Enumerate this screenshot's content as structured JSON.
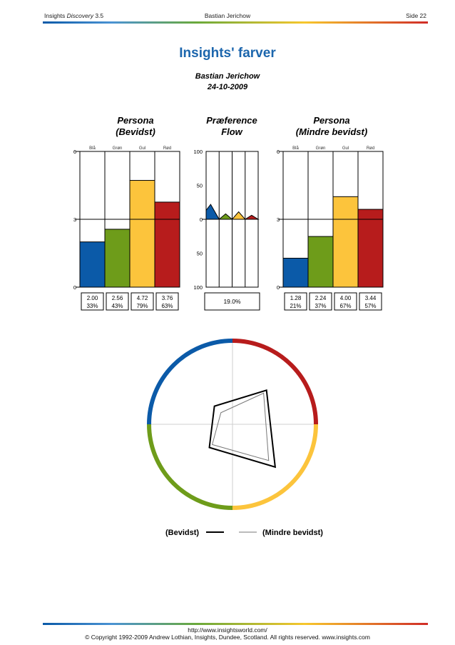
{
  "header": {
    "product_prefix": "Insights ",
    "product_italic": "Discovery",
    "product_version": " 3.5",
    "person": "Bastian Jerichow",
    "page": "Side 22"
  },
  "title": "Insights' farver",
  "name": "Bastian Jerichow",
  "date": "24-10-2009",
  "colors": {
    "blue": "#0b5aa8",
    "green": "#6e9c1a",
    "yellow": "#fcc43c",
    "red": "#b71c1c"
  },
  "chart_data": [
    {
      "type": "bar",
      "title_line1": "Persona",
      "title_line2": "(Bevidst)",
      "categories": [
        "Blå",
        "Grøn",
        "Gul",
        "Rød"
      ],
      "values": [
        2.0,
        2.56,
        4.72,
        3.76
      ],
      "value_labels": [
        "2.00",
        "2.56",
        "4.72",
        "3.76"
      ],
      "percent_labels": [
        "33%",
        "43%",
        "79%",
        "63%"
      ],
      "ylim": [
        0,
        6
      ],
      "yticks": [
        "0",
        "3",
        "6"
      ]
    },
    {
      "type": "bar",
      "title_line1": "Præference",
      "title_line2": "Flow",
      "values": [
        22,
        8,
        11,
        6
      ],
      "ylim": [
        -100,
        100
      ],
      "yticks": [
        "100",
        "50",
        "0",
        "50",
        "100"
      ],
      "summary_label": "19.0%"
    },
    {
      "type": "bar",
      "title_line1": "Persona",
      "title_line2": "(Mindre bevidst)",
      "categories": [
        "Blå",
        "Grøn",
        "Gul",
        "Rød"
      ],
      "values": [
        1.28,
        2.24,
        4.0,
        3.44
      ],
      "value_labels": [
        "1.28",
        "2.24",
        "4.00",
        "3.44"
      ],
      "percent_labels": [
        "21%",
        "37%",
        "67%",
        "57%"
      ],
      "ylim": [
        0,
        6
      ],
      "yticks": [
        "0",
        "3",
        "6"
      ]
    },
    {
      "type": "radar",
      "axes": [
        "Rød",
        "Gul",
        "Grøn",
        "Blå"
      ],
      "series": [
        {
          "name": "(Bevidst)",
          "values": [
            3.76,
            4.72,
            2.56,
            2.0
          ]
        },
        {
          "name": "(Mindre bevidst)",
          "values": [
            3.44,
            4.0,
            2.24,
            1.28
          ]
        }
      ],
      "rmax": 6
    }
  ],
  "legend": {
    "conscious": "(Bevidst)",
    "less_conscious": "(Mindre bevidst)"
  },
  "footer": {
    "url": "http://www.insightsworld.com/",
    "copyright": "© Copyright 1992-2009 Andrew Lothian, Insights, Dundee, Scotland. All rights reserved. www.insights.com"
  }
}
